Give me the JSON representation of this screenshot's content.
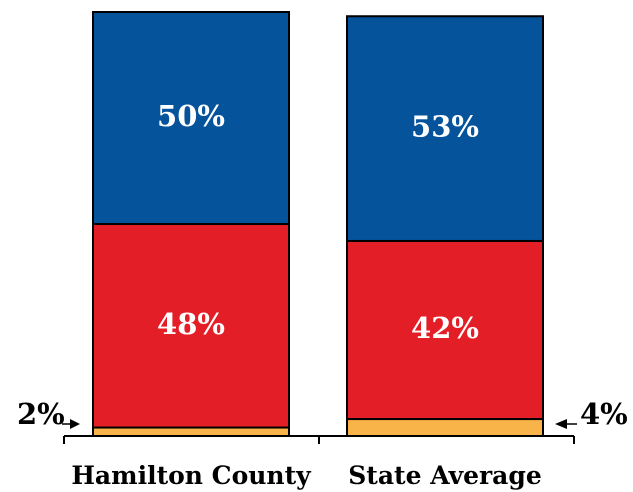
{
  "chart_data": {
    "type": "bar",
    "stacked": true,
    "categories": [
      "Hamilton County",
      "State Average"
    ],
    "series": [
      {
        "name": "",
        "color": "#f8b448",
        "values": [
          2,
          4
        ],
        "labels": [
          "2%",
          "4%"
        ]
      },
      {
        "name": "",
        "color": "#e41e26",
        "values": [
          48,
          42
        ],
        "labels": [
          "48%",
          "42%"
        ]
      },
      {
        "name": "",
        "color": "#04539b",
        "values": [
          50,
          53
        ],
        "labels": [
          "50%",
          "53%"
        ]
      }
    ],
    "ylim": [
      0,
      100
    ],
    "title": "",
    "xlabel": "",
    "ylabel": "",
    "legend": "none",
    "grid": false
  }
}
